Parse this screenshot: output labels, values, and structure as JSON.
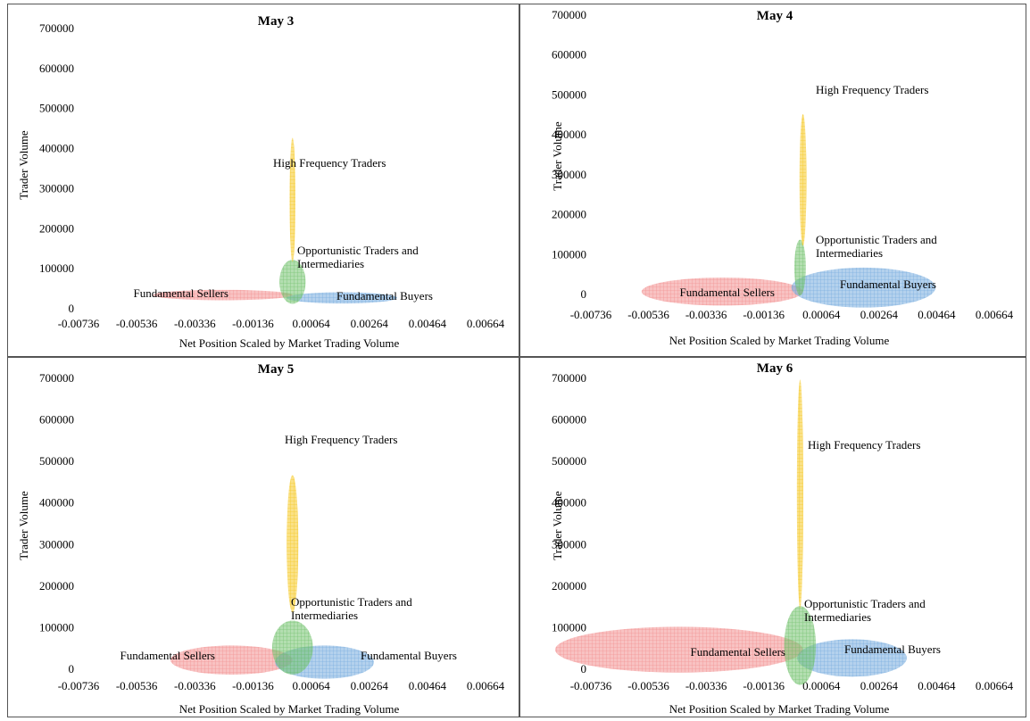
{
  "chart_data": [
    {
      "type": "scatter",
      "title": "May 3",
      "xlabel": "Net Position Scaled by Market Trading Volume",
      "ylabel": "Trader Volume",
      "x_ticks": [
        "-0.00736",
        "-0.00536",
        "-0.00336",
        "-0.00136",
        "0.00064",
        "0.00264",
        "0.00464",
        "0.00664"
      ],
      "y_ticks": [
        "0",
        "100000",
        "200000",
        "300000",
        "400000",
        "500000",
        "600000",
        "700000"
      ],
      "xlim": [
        -0.00736,
        0.00664
      ],
      "ylim": [
        0,
        700000
      ],
      "grid": false,
      "series": [
        {
          "name": "High Frequency Traders",
          "color": "#F5C518",
          "cx": 0.0,
          "cy": 270000,
          "rx": 0.0001,
          "ry": 155000
        },
        {
          "name": "Opportunistic Traders and Intermediaries",
          "color": "#6DBF67",
          "cx": 0.0,
          "cy": 65000,
          "rx": 0.00045,
          "ry": 55000
        },
        {
          "name": "Fundamental Sellers",
          "color": "#F28B8B",
          "cx": -0.0024,
          "cy": 32000,
          "rx": 0.0024,
          "ry": 13000
        },
        {
          "name": "Fundamental Buyers",
          "color": "#6FA8DC",
          "cx": 0.0017,
          "cy": 25000,
          "rx": 0.0019,
          "ry": 14000
        }
      ]
    },
    {
      "type": "scatter",
      "title": "May 4",
      "xlabel": "Net Position Scaled by Market Trading Volume",
      "ylabel": "Trader Volume",
      "x_ticks": [
        "-0.00736",
        "-0.00536",
        "-0.00336",
        "-0.00136",
        "0.00064",
        "0.00264",
        "0.00464",
        "0.00664"
      ],
      "y_ticks": [
        "0",
        "100000",
        "200000",
        "300000",
        "400000",
        "500000",
        "600000",
        "700000"
      ],
      "xlim": [
        -0.00736,
        0.00664
      ],
      "ylim": [
        0,
        700000
      ],
      "grid": false,
      "series": [
        {
          "name": "High Frequency Traders",
          "color": "#F5C518",
          "cx": 0.0,
          "cy": 285000,
          "rx": 0.00012,
          "ry": 165000
        },
        {
          "name": "Opportunistic Traders and Intermediaries",
          "color": "#6DBF67",
          "cx": -0.0001,
          "cy": 65000,
          "rx": 0.0002,
          "ry": 70000
        },
        {
          "name": "Fundamental Sellers",
          "color": "#F28B8B",
          "cx": -0.0028,
          "cy": 5000,
          "rx": 0.0028,
          "ry": 35000
        },
        {
          "name": "Fundamental Buyers",
          "color": "#6FA8DC",
          "cx": 0.0021,
          "cy": 15000,
          "rx": 0.0025,
          "ry": 50000
        }
      ]
    },
    {
      "type": "scatter",
      "title": "May 5",
      "xlabel": "Net Position Scaled by Market Trading Volume",
      "ylabel": "Trader Volume",
      "x_ticks": [
        "-0.00736",
        "-0.00536",
        "-0.00336",
        "-0.00136",
        "0.00064",
        "0.00264",
        "0.00464",
        "0.00664"
      ],
      "y_ticks": [
        "0",
        "100000",
        "200000",
        "300000",
        "400000",
        "500000",
        "600000",
        "700000"
      ],
      "xlim": [
        -0.00736,
        0.00664
      ],
      "ylim": [
        0,
        700000
      ],
      "grid": false,
      "series": [
        {
          "name": "High Frequency Traders",
          "color": "#F5C518",
          "cx": 0.0,
          "cy": 300000,
          "rx": 0.0002,
          "ry": 165000
        },
        {
          "name": "Opportunistic Traders and Intermediaries",
          "color": "#6DBF67",
          "cx": 0.0,
          "cy": 50000,
          "rx": 0.0007,
          "ry": 65000
        },
        {
          "name": "Fundamental Sellers",
          "color": "#F28B8B",
          "cx": -0.0021,
          "cy": 20000,
          "rx": 0.0021,
          "ry": 35000
        },
        {
          "name": "Fundamental Buyers",
          "color": "#6FA8DC",
          "cx": 0.0011,
          "cy": 15000,
          "rx": 0.0017,
          "ry": 40000
        }
      ]
    },
    {
      "type": "scatter",
      "title": "May 6",
      "xlabel": "Net Position Scaled by Market Trading Volume",
      "ylabel": "Trader Volume",
      "x_ticks": [
        "-0.00736",
        "-0.00536",
        "-0.00336",
        "-0.00136",
        "0.00064",
        "0.00264",
        "0.00464",
        "0.00664"
      ],
      "y_ticks": [
        "0",
        "100000",
        "200000",
        "300000",
        "400000",
        "500000",
        "600000",
        "700000"
      ],
      "xlim": [
        -0.00736,
        0.00664
      ],
      "ylim": [
        0,
        700000
      ],
      "grid": false,
      "series": [
        {
          "name": "High Frequency Traders",
          "color": "#F5C518",
          "cx": -0.0001,
          "cy": 420000,
          "rx": 0.00011,
          "ry": 275000
        },
        {
          "name": "Opportunistic Traders and Intermediaries",
          "color": "#6DBF67",
          "cx": -0.0001,
          "cy": 55000,
          "rx": 0.00055,
          "ry": 95000
        },
        {
          "name": "Fundamental Sellers",
          "color": "#F28B8B",
          "cx": -0.0043,
          "cy": 45000,
          "rx": 0.0043,
          "ry": 55000
        },
        {
          "name": "Fundamental Buyers",
          "color": "#6FA8DC",
          "cx": 0.0017,
          "cy": 25000,
          "rx": 0.0019,
          "ry": 45000
        }
      ]
    }
  ]
}
